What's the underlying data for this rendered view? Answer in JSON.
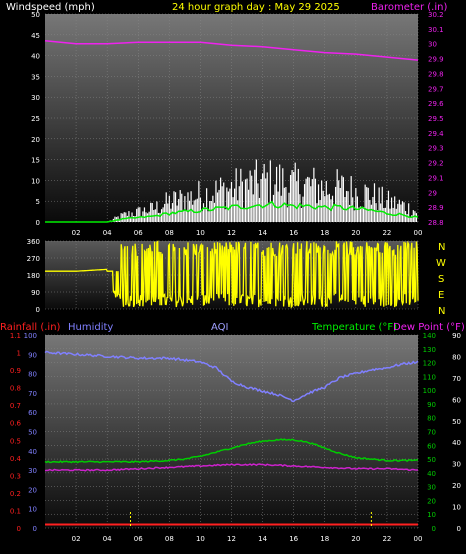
{
  "header": {
    "left_label": "Windspeed (mph)",
    "title": "24 hour graph day : May 29 2025",
    "right_label": "Barometer (.in)"
  },
  "lower_header": {
    "rainfall": "Rainfall (.in)",
    "humidity": "Humidity",
    "aqi": "AQI",
    "temperature": "Temperature (°F)",
    "dewpoint": "Dew Point (°F)"
  },
  "compass": [
    "N",
    "W",
    "S",
    "E",
    "N"
  ],
  "colors": {
    "windspeed": "#ffffff",
    "wind_avg": "#00ee00",
    "barometer": "#ee22ee",
    "direction": "#ffff00",
    "humidity": "#8080ff",
    "temperature": "#00cc00",
    "dewpoint": "#cc22cc",
    "rainfall": "#ff2020",
    "aqi": "#a0a0ff"
  },
  "chart_data": [
    {
      "type": "line",
      "name": "wind_barometer",
      "x_ticks": [
        "02",
        "04",
        "06",
        "08",
        "10",
        "12",
        "14",
        "16",
        "18",
        "20",
        "22",
        "00"
      ],
      "wind_axis": {
        "ticks": [
          0,
          5,
          10,
          15,
          20,
          25,
          30,
          35,
          40,
          45,
          50
        ],
        "ylim": [
          0,
          50
        ]
      },
      "barometer_axis": {
        "ticks": [
          "28.8",
          "28.9",
          "29",
          "29.1",
          "29.2",
          "29.3",
          "29.4",
          "29.5",
          "29.6",
          "29.7",
          "29.8",
          "29.9",
          "30",
          "30.1",
          "30.2"
        ],
        "ylim": [
          28.8,
          30.2
        ]
      },
      "series": [
        {
          "name": "Windspeed",
          "x": [
            0,
            2,
            4,
            5,
            6,
            7,
            8,
            9,
            10,
            11,
            12,
            13,
            14,
            15,
            16,
            17,
            18,
            19,
            20,
            21,
            22,
            23,
            24
          ],
          "values": [
            0,
            0,
            0,
            2,
            3,
            4,
            6,
            7,
            8,
            9,
            10,
            11,
            12,
            12,
            11,
            11,
            10,
            10,
            9,
            8,
            6,
            5,
            3
          ]
        },
        {
          "name": "Barometer",
          "x": [
            0,
            2,
            4,
            6,
            8,
            10,
            12,
            14,
            16,
            18,
            20,
            22,
            24
          ],
          "values": [
            30.02,
            30.0,
            30.0,
            30.01,
            30.01,
            30.01,
            29.99,
            29.98,
            29.96,
            29.94,
            29.93,
            29.91,
            29.89
          ]
        }
      ]
    },
    {
      "type": "scatter",
      "name": "wind_direction",
      "y_ticks": [
        0,
        90,
        180,
        270,
        360
      ],
      "ylim": [
        0,
        360
      ],
      "x": [
        0,
        1,
        2,
        3,
        4,
        4.5,
        5,
        6,
        7,
        8,
        9,
        10,
        11,
        12,
        13,
        14,
        15,
        16,
        17,
        18,
        19,
        20,
        21,
        22,
        23,
        24
      ],
      "values": [
        200,
        200,
        200,
        205,
        210,
        90,
        350,
        60,
        300,
        20,
        340,
        40,
        320,
        10,
        330,
        30,
        300,
        70,
        340,
        20,
        310,
        50,
        330,
        60,
        340,
        30
      ]
    },
    {
      "type": "line",
      "name": "temp_humidity_rain",
      "x_ticks": [
        "02",
        "04",
        "06",
        "08",
        "10",
        "12",
        "14",
        "16",
        "18",
        "20",
        "22",
        "00"
      ],
      "rain_axis": {
        "ticks": [
          "0",
          "0.1",
          "0.2",
          "0.3",
          "0.4",
          "0.5",
          "0.6",
          "0.7",
          "0.8",
          "0.9",
          "1",
          "1.1"
        ],
        "ylim": [
          0,
          1.1
        ]
      },
      "humidity_axis": {
        "ticks": [
          0,
          10,
          20,
          30,
          40,
          50,
          60,
          70,
          80,
          90,
          100
        ],
        "ylim": [
          0,
          100
        ]
      },
      "temperature_axis": {
        "ticks": [
          0,
          10,
          20,
          30,
          40,
          50,
          60,
          70,
          80,
          90,
          100,
          110,
          120,
          130,
          140
        ],
        "ylim": [
          0,
          140
        ]
      },
      "aqi_axis": {
        "ticks": [
          0,
          10,
          20,
          30,
          40,
          50,
          60,
          70,
          80,
          90
        ],
        "ylim": [
          0,
          90
        ]
      },
      "series": [
        {
          "name": "Humidity",
          "x": [
            0,
            2,
            4,
            6,
            8,
            10,
            11,
            12,
            13,
            14,
            15,
            16,
            17,
            18,
            19,
            20,
            21,
            22,
            23,
            24
          ],
          "values": [
            91,
            90,
            89,
            88,
            88,
            86,
            83,
            76,
            73,
            71,
            69,
            66,
            70,
            73,
            78,
            80,
            82,
            83,
            85,
            86
          ]
        },
        {
          "name": "Temperature",
          "x": [
            0,
            2,
            4,
            6,
            8,
            9,
            10,
            11,
            12,
            13,
            14,
            15,
            16,
            17,
            18,
            19,
            20,
            21,
            22,
            23,
            24
          ],
          "values": [
            48,
            48,
            48,
            48,
            49,
            50,
            52,
            55,
            58,
            61,
            63,
            64,
            64,
            62,
            58,
            54,
            51,
            50,
            49,
            49,
            49
          ]
        },
        {
          "name": "Dew Point",
          "x": [
            0,
            2,
            4,
            6,
            8,
            10,
            12,
            14,
            16,
            18,
            20,
            22,
            24
          ],
          "values": [
            42,
            42,
            42,
            43,
            44,
            45,
            46,
            46,
            45,
            44,
            43,
            43,
            42
          ]
        },
        {
          "name": "Rainfall",
          "x": [
            0,
            24
          ],
          "values": [
            0.02,
            0.02
          ]
        }
      ]
    }
  ]
}
